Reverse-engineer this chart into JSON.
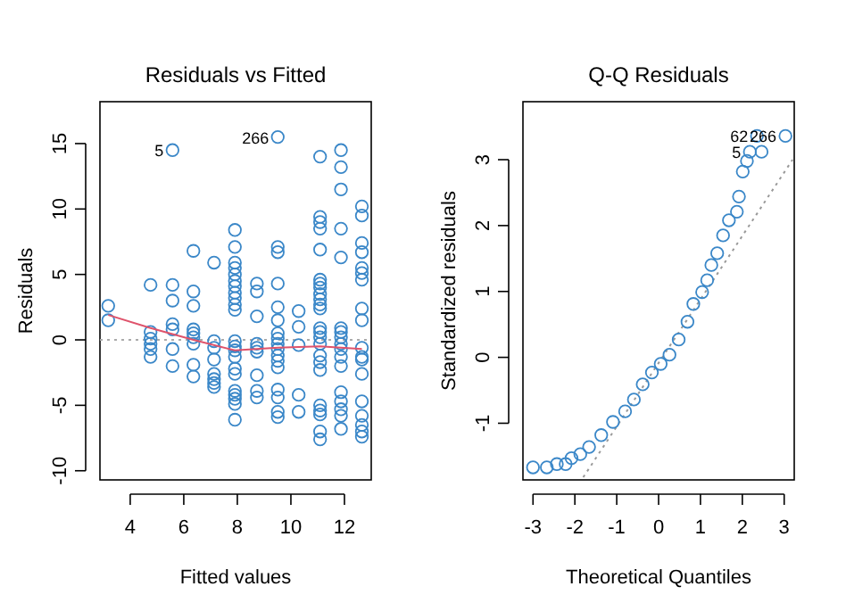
{
  "chart_data": [
    {
      "type": "scatter",
      "title": "Residuals vs Fitted",
      "xlabel": "Fitted values",
      "ylabel": "Residuals",
      "xlim": [
        2.87,
        13.0
      ],
      "ylim": [
        -10.7,
        18.2
      ],
      "xticks": [
        4,
        6,
        8,
        10,
        12
      ],
      "yticks": [
        -10,
        -5,
        0,
        5,
        10,
        15
      ],
      "marker": "circle",
      "ref_lines": [
        {
          "axis": "y",
          "value": 0,
          "color": "#aaaaaa",
          "line_style": "dotted"
        }
      ],
      "annotations": [
        {
          "text": "5",
          "x": 5.58,
          "y": 14.5
        },
        {
          "text": "266",
          "x": 9.51,
          "y": 15.5
        }
      ],
      "series": [
        {
          "color": "#3a87c8",
          "x": [
            3.18,
            3.18,
            4.76,
            4.76,
            4.76,
            4.76,
            4.76,
            4.76,
            5.58,
            5.58,
            5.58,
            5.58,
            5.58,
            5.58,
            5.58,
            6.36,
            6.36,
            6.36,
            6.36,
            6.36,
            6.36,
            6.36,
            6.36,
            6.36,
            7.13,
            7.13,
            7.13,
            7.13,
            7.13,
            7.13,
            7.13,
            7.13,
            7.91,
            7.91,
            7.91,
            7.91,
            7.91,
            7.91,
            7.91,
            7.91,
            7.91,
            7.91,
            7.91,
            7.91,
            7.91,
            7.91,
            7.91,
            7.91,
            7.91,
            7.91,
            7.91,
            7.91,
            7.91,
            7.91,
            8.73,
            8.73,
            8.73,
            8.73,
            8.73,
            8.73,
            8.73,
            8.73,
            8.73,
            9.51,
            9.51,
            9.51,
            9.51,
            9.51,
            9.51,
            9.51,
            9.51,
            9.51,
            9.51,
            9.51,
            9.51,
            9.51,
            9.51,
            9.51,
            9.51,
            9.51,
            10.29,
            10.29,
            10.29,
            10.29,
            10.29,
            11.09,
            11.09,
            11.09,
            11.09,
            11.09,
            11.09,
            11.09,
            11.09,
            11.09,
            11.09,
            11.09,
            11.09,
            11.09,
            11.09,
            11.09,
            11.09,
            11.09,
            11.09,
            11.09,
            11.09,
            11.09,
            11.09,
            11.09,
            11.09,
            11.87,
            11.87,
            11.87,
            11.87,
            11.87,
            11.87,
            11.87,
            11.87,
            11.87,
            11.87,
            11.87,
            11.87,
            11.87,
            11.87,
            11.87,
            11.87,
            11.87,
            12.65,
            12.65,
            12.65,
            12.65,
            12.65,
            12.65,
            12.65,
            12.65,
            12.65,
            12.65,
            12.65,
            12.65,
            12.65,
            12.65,
            12.65,
            12.65,
            12.65,
            12.65
          ],
          "values": [
            2.6,
            1.5,
            4.2,
            0.6,
            0.1,
            -0.3,
            -0.7,
            -1.3,
            14.5,
            4.2,
            3.0,
            1.2,
            0.8,
            -0.7,
            -2.0,
            6.8,
            3.7,
            2.6,
            0.8,
            0.5,
            0.2,
            -0.3,
            -1.9,
            -2.8,
            5.9,
            -0.1,
            -0.6,
            -1.5,
            -2.6,
            -3.0,
            -3.3,
            -3.6,
            8.4,
            7.1,
            5.9,
            5.5,
            5.0,
            4.5,
            4.1,
            3.6,
            3.2,
            2.7,
            2.3,
            -0.1,
            -0.5,
            -0.8,
            -1.3,
            -2.2,
            -2.6,
            -3.9,
            -4.2,
            -4.5,
            -4.9,
            -6.1,
            4.3,
            3.7,
            1.8,
            -0.3,
            -0.6,
            -0.9,
            -2.7,
            -3.9,
            -4.4,
            15.5,
            7.1,
            6.7,
            4.3,
            2.5,
            1.5,
            0.5,
            0.1,
            -0.3,
            -0.7,
            -1.2,
            -1.6,
            -2.1,
            -3.8,
            -4.4,
            -5.5,
            -5.9,
            2.2,
            1.0,
            -0.4,
            -4.2,
            -5.5,
            14.0,
            9.4,
            9.0,
            8.5,
            6.9,
            4.6,
            4.3,
            4.0,
            3.5,
            3.1,
            2.7,
            2.4,
            0.9,
            0.6,
            0.2,
            -0.3,
            -1.2,
            -1.7,
            -2.3,
            -5.0,
            -5.4,
            -5.7,
            -7.0,
            -7.6,
            14.5,
            13.2,
            11.5,
            8.5,
            6.3,
            0.9,
            0.6,
            0.2,
            -0.3,
            -0.7,
            -1.3,
            -2.0,
            -4.0,
            -4.7,
            -5.3,
            -5.8,
            -6.8,
            10.2,
            9.5,
            7.4,
            6.7,
            5.5,
            5.1,
            4.6,
            2.4,
            1.5,
            -0.6,
            -1.3,
            -1.5,
            -2.6,
            -4.7,
            -5.8,
            -6.5,
            -7.0,
            -7.4
          ]
        },
        {
          "type": "line",
          "color": "#df536b",
          "marker": "none",
          "line_style": "solid",
          "x": [
            3.18,
            4.76,
            6.36,
            7.91,
            9.51,
            11.09,
            12.65
          ],
          "values": [
            1.9,
            0.9,
            0.0,
            -0.8,
            -0.6,
            -0.5,
            -0.7
          ]
        }
      ]
    },
    {
      "type": "scatter",
      "title": "Q-Q Residuals",
      "xlabel": "Theoretical Quantiles",
      "ylabel": "Standardized residuals",
      "xlim": [
        -3.24,
        3.24
      ],
      "ylim": [
        -1.86,
        3.88
      ],
      "xticks": [
        -3,
        -2,
        -1,
        0,
        1,
        2,
        3
      ],
      "yticks": [
        -1,
        0,
        1,
        2,
        3
      ],
      "marker": "circle",
      "annotations": [
        {
          "text": "62",
          "x": 2.35,
          "y": 3.36
        },
        {
          "text": "266",
          "x": 3.03,
          "y": 3.36
        },
        {
          "text": "5",
          "x": 2.18,
          "y": 3.12
        }
      ],
      "series": [
        {
          "type": "line",
          "color": "#999999",
          "marker": "none",
          "line_style": "dotted",
          "x": [
            -1.8,
            3.2
          ],
          "values": [
            -1.82,
            3.0
          ]
        },
        {
          "color": "#3a87c8",
          "x": [
            -3.0,
            -2.67,
            -2.43,
            -2.22,
            -2.08,
            -1.87,
            -1.66,
            -1.37,
            -1.09,
            -0.8,
            -0.59,
            -0.38,
            -0.16,
            0.05,
            0.26,
            0.48,
            0.69,
            0.83,
            1.04,
            1.16,
            1.26,
            1.4,
            1.54,
            1.68,
            1.87,
            1.92,
            2.01,
            2.11,
            2.18,
            2.46,
            2.35,
            3.03
          ],
          "values": [
            -1.67,
            -1.67,
            -1.62,
            -1.62,
            -1.53,
            -1.47,
            -1.36,
            -1.18,
            -0.98,
            -0.82,
            -0.64,
            -0.41,
            -0.23,
            -0.1,
            0.04,
            0.27,
            0.54,
            0.81,
            0.99,
            1.17,
            1.4,
            1.58,
            1.85,
            2.08,
            2.21,
            2.44,
            2.82,
            2.98,
            3.12,
            3.12,
            3.36,
            3.36
          ]
        }
      ]
    }
  ]
}
